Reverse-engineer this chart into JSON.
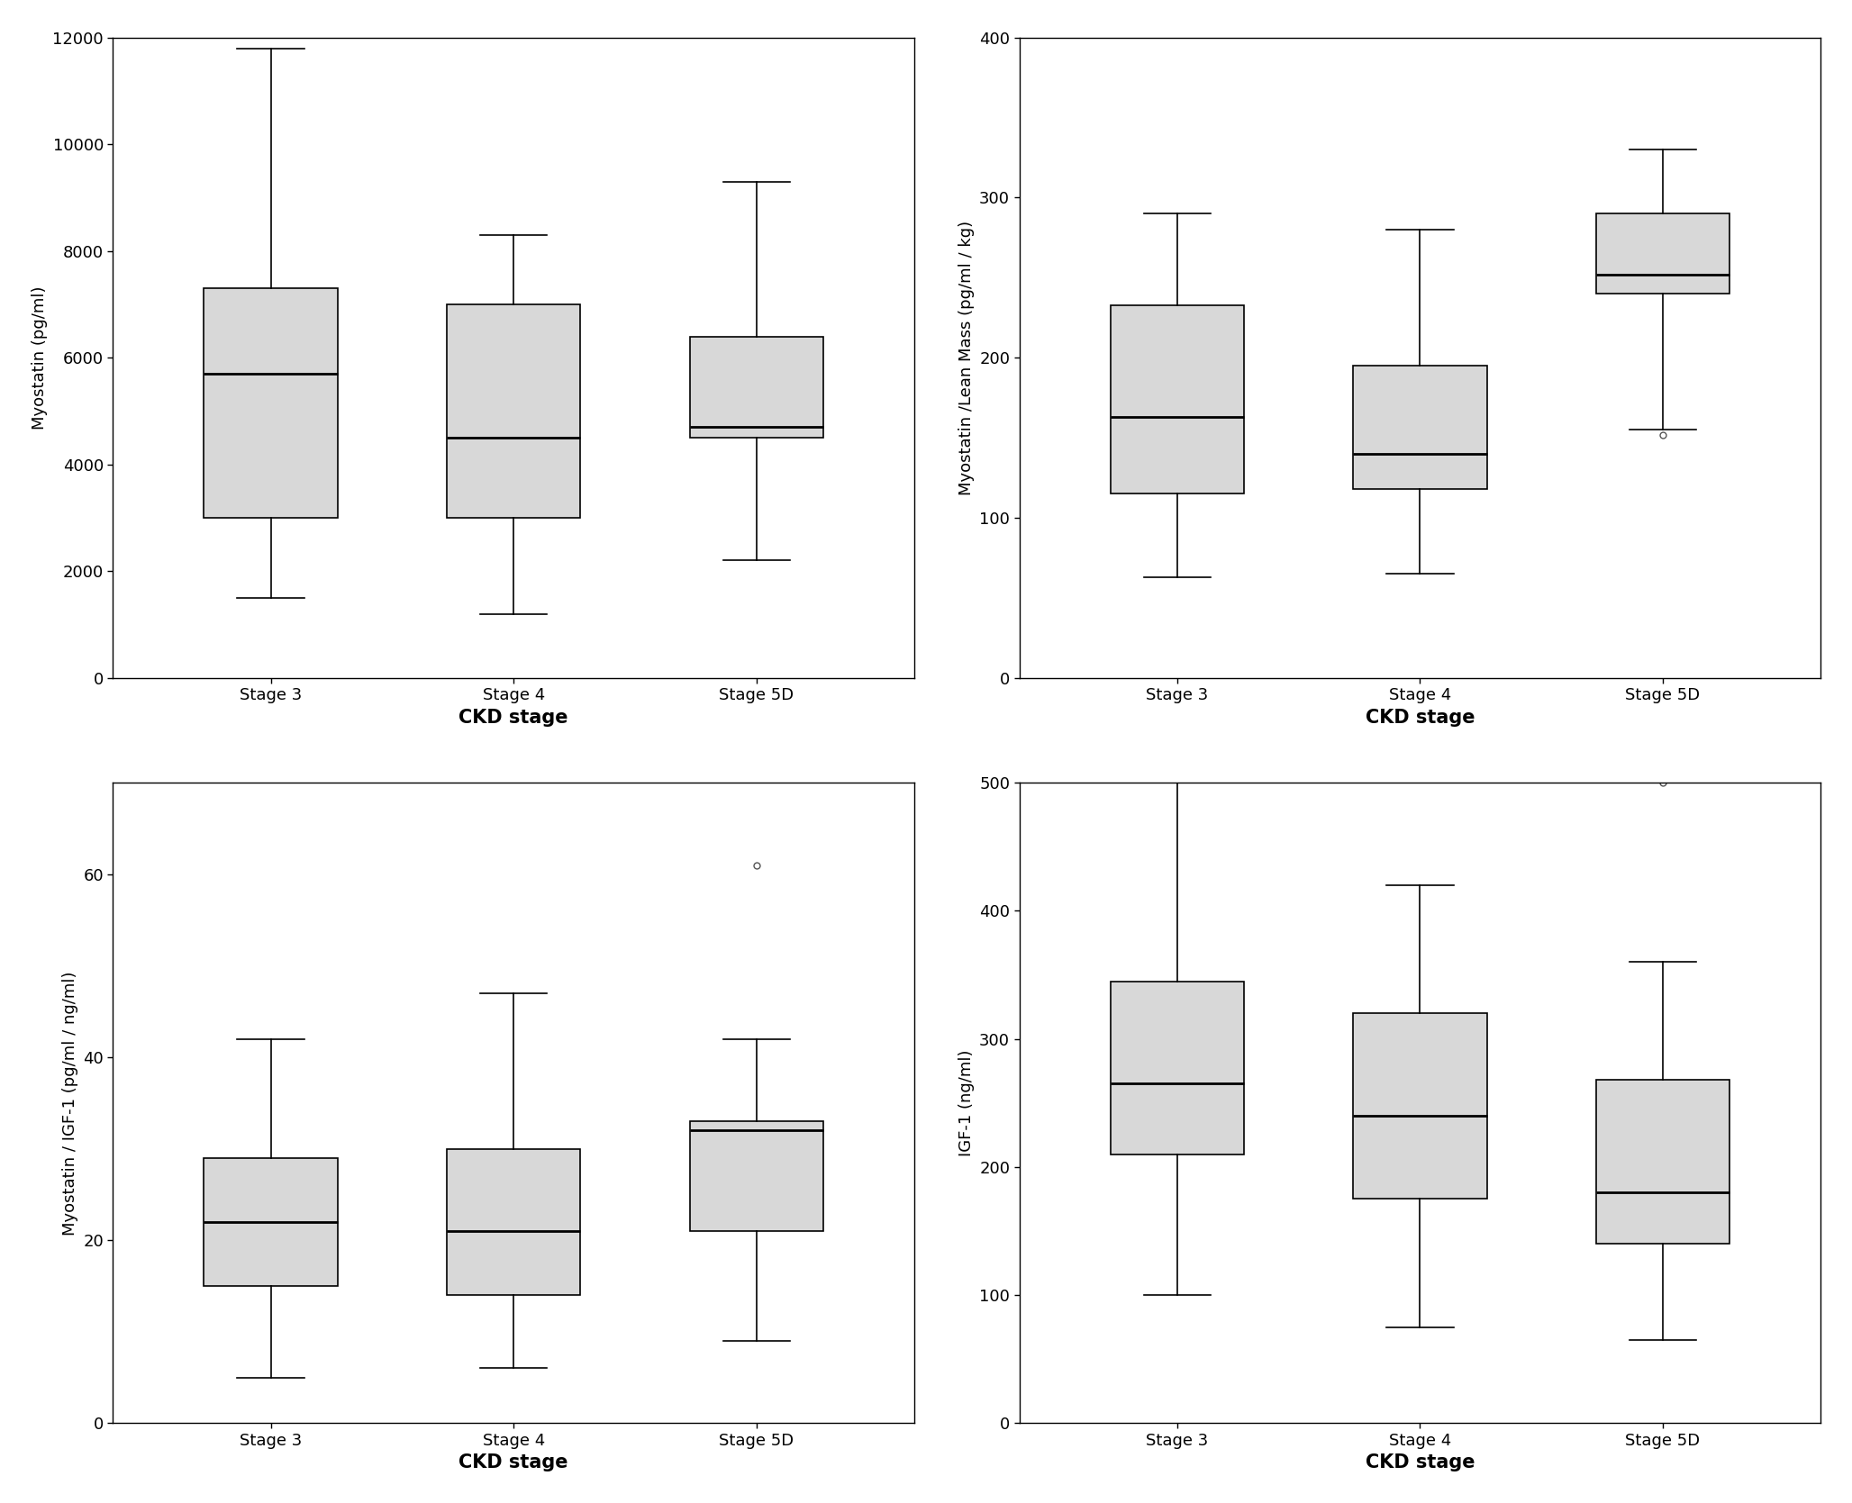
{
  "plots": [
    {
      "ylabel": "Myostatin (pg/ml)",
      "xlabel": "CKD stage",
      "ylim": [
        0,
        12000
      ],
      "yticks": [
        0,
        2000,
        4000,
        6000,
        8000,
        10000,
        12000
      ],
      "categories": [
        "Stage 3",
        "Stage 4",
        "Stage 5D"
      ],
      "boxes": [
        {
          "q1": 3000,
          "median": 5700,
          "q3": 7300,
          "whislo": 1500,
          "whishi": 11800,
          "fliers": []
        },
        {
          "q1": 3000,
          "median": 4500,
          "q3": 7000,
          "whislo": 1200,
          "whishi": 8300,
          "fliers": []
        },
        {
          "q1": 4500,
          "median": 4700,
          "q3": 6400,
          "whislo": 2200,
          "whishi": 9300,
          "fliers": []
        }
      ]
    },
    {
      "ylabel": "Myostatin /Lean Mass (pg/ml / kg)",
      "xlabel": "CKD stage",
      "ylim": [
        0,
        400
      ],
      "yticks": [
        0,
        100,
        200,
        300,
        400
      ],
      "categories": [
        "Stage 3",
        "Stage 4",
        "Stage 5D"
      ],
      "boxes": [
        {
          "q1": 115,
          "median": 163,
          "q3": 233,
          "whislo": 63,
          "whishi": 290,
          "fliers": []
        },
        {
          "q1": 118,
          "median": 140,
          "q3": 195,
          "whislo": 65,
          "whishi": 280,
          "fliers": []
        },
        {
          "q1": 240,
          "median": 252,
          "q3": 290,
          "whislo": 155,
          "whishi": 330,
          "fliers": [
            152
          ]
        }
      ]
    },
    {
      "ylabel": "Myostatin / IGF-1 (pg/ml / ng/ml)",
      "xlabel": "CKD stage",
      "ylim": [
        0,
        70
      ],
      "yticks": [
        0,
        20,
        40,
        60
      ],
      "categories": [
        "Stage 3",
        "Stage 4",
        "Stage 5D"
      ],
      "boxes": [
        {
          "q1": 15,
          "median": 22,
          "q3": 29,
          "whislo": 5,
          "whishi": 42,
          "fliers": []
        },
        {
          "q1": 14,
          "median": 21,
          "q3": 30,
          "whislo": 6,
          "whishi": 47,
          "fliers": []
        },
        {
          "q1": 21,
          "median": 32,
          "q3": 33,
          "whislo": 9,
          "whishi": 42,
          "fliers": [
            61
          ]
        }
      ]
    },
    {
      "ylabel": "IGF-1 (ng/ml)",
      "xlabel": "CKD stage",
      "ylim": [
        0,
        500
      ],
      "yticks": [
        0,
        100,
        200,
        300,
        400,
        500
      ],
      "categories": [
        "Stage 3",
        "Stage 4",
        "Stage 5D"
      ],
      "boxes": [
        {
          "q1": 210,
          "median": 265,
          "q3": 345,
          "whislo": 100,
          "whishi": 500,
          "fliers": []
        },
        {
          "q1": 175,
          "median": 240,
          "q3": 320,
          "whislo": 75,
          "whishi": 420,
          "fliers": []
        },
        {
          "q1": 140,
          "median": 180,
          "q3": 268,
          "whislo": 65,
          "whishi": 360,
          "fliers": [
            500
          ]
        }
      ]
    }
  ],
  "box_color": "#d8d8d8",
  "box_edge_color": "#000000",
  "median_color": "#000000",
  "whisker_color": "#000000",
  "flier_color": "#555555",
  "xlabel_fontsize": 15,
  "ylabel_fontsize": 13,
  "tick_fontsize": 13,
  "xtick_fontsize": 13,
  "box_width": 0.55,
  "background_color": "#ffffff",
  "figure_bg": "#ffffff"
}
